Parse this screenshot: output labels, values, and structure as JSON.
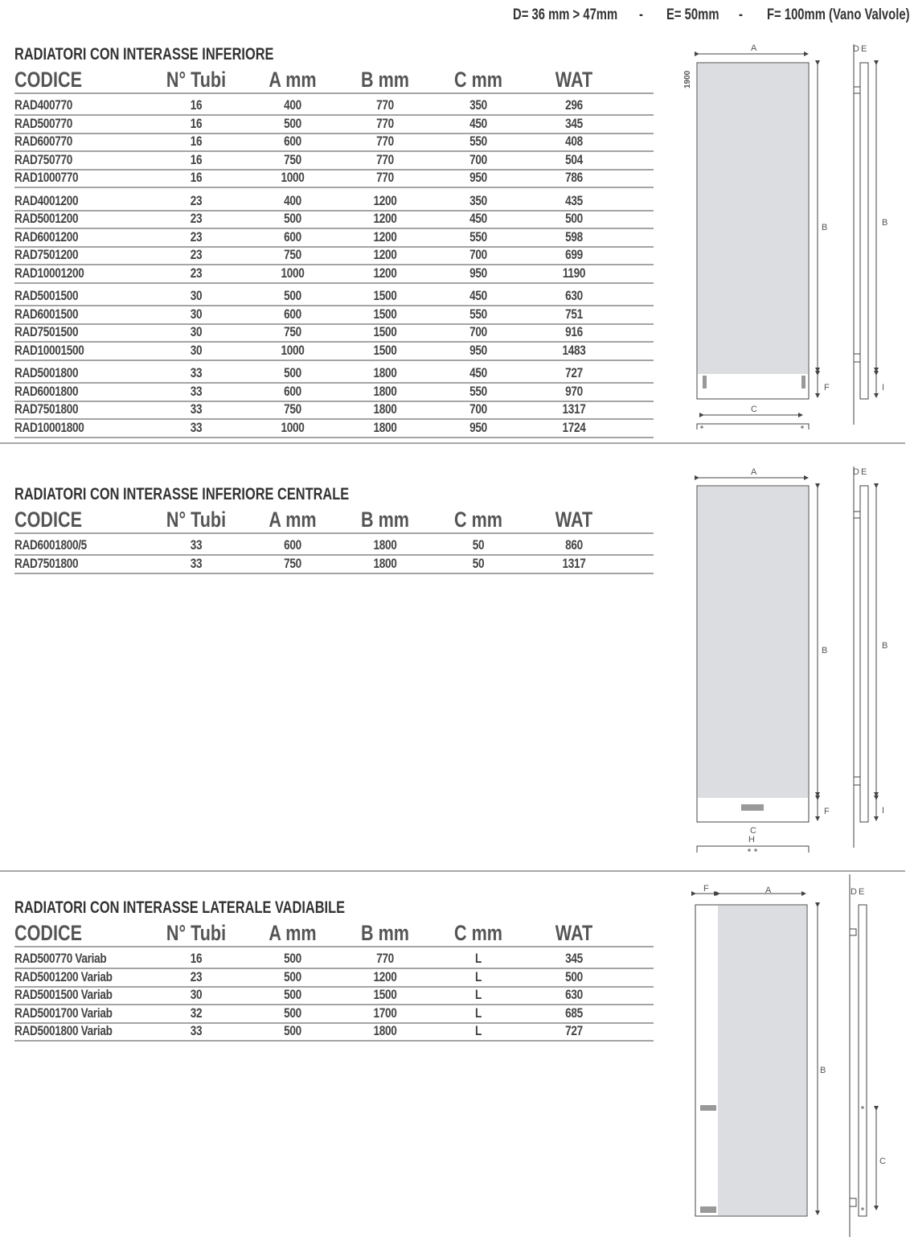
{
  "header_notes": [
    "D= 36 mm > 47mm",
    "-",
    "E= 50mm",
    "-",
    "F= 100mm (Vano Valvole)"
  ],
  "columns": [
    "CODICE",
    "N° Tubi",
    "A mm",
    "B mm",
    "C mm",
    "WAT"
  ],
  "sections": [
    {
      "title": "RADIATORI CON INTERASSE INFERIORE",
      "groups": [
        [
          [
            "RAD400770",
            "16",
            "400",
            "770",
            "350",
            "296"
          ],
          [
            "RAD500770",
            "16",
            "500",
            "770",
            "450",
            "345"
          ],
          [
            "RAD600770",
            "16",
            "600",
            "770",
            "550",
            "408"
          ],
          [
            "RAD750770",
            "16",
            "750",
            "770",
            "700",
            "504"
          ],
          [
            "RAD1000770",
            "16",
            "1000",
            "770",
            "950",
            "786"
          ]
        ],
        [
          [
            "RAD4001200",
            "23",
            "400",
            "1200",
            "350",
            "435"
          ],
          [
            "RAD5001200",
            "23",
            "500",
            "1200",
            "450",
            "500"
          ],
          [
            "RAD6001200",
            "23",
            "600",
            "1200",
            "550",
            "598"
          ],
          [
            "RAD7501200",
            "23",
            "750",
            "1200",
            "700",
            "699"
          ],
          [
            "RAD10001200",
            "23",
            "1000",
            "1200",
            "950",
            "1190"
          ]
        ],
        [
          [
            "RAD5001500",
            "30",
            "500",
            "1500",
            "450",
            "630"
          ],
          [
            "RAD6001500",
            "30",
            "600",
            "1500",
            "550",
            "751"
          ],
          [
            "RAD7501500",
            "30",
            "750",
            "1500",
            "700",
            "916"
          ],
          [
            "RAD10001500",
            "30",
            "1000",
            "1500",
            "950",
            "1483"
          ]
        ],
        [
          [
            "RAD5001800",
            "33",
            "500",
            "1800",
            "450",
            "727"
          ],
          [
            "RAD6001800",
            "33",
            "600",
            "1800",
            "550",
            "970"
          ],
          [
            "RAD7501800",
            "33",
            "750",
            "1800",
            "700",
            "1317"
          ],
          [
            "RAD10001800",
            "33",
            "1000",
            "1800",
            "950",
            "1724"
          ]
        ]
      ]
    },
    {
      "title": "RADIATORI CON INTERASSE INFERIORE CENTRALE",
      "groups": [
        [
          [
            "RAD6001800/5",
            "33",
            "600",
            "1800",
            "50",
            "860"
          ],
          [
            "RAD7501800",
            "33",
            "750",
            "1800",
            "50",
            "1317"
          ]
        ]
      ]
    },
    {
      "title": "RADIATORI CON INTERASSE LATERALE VADIABILE",
      "groups": [
        [
          [
            "RAD500770 Variab",
            "16",
            "500",
            "770",
            "L",
            "345"
          ],
          [
            "RAD5001200 Variab",
            "23",
            "500",
            "1200",
            "L",
            "500"
          ],
          [
            "RAD5001500 Variab",
            "30",
            "500",
            "1500",
            "L",
            "630"
          ],
          [
            "RAD5001700 Variab",
            "32",
            "500",
            "1700",
            "L",
            "685"
          ],
          [
            "RAD5001800 Variab",
            "33",
            "500",
            "1800",
            "L",
            "727"
          ]
        ]
      ]
    }
  ],
  "diagram_labels": {
    "a": "A",
    "b": "B",
    "c": "C",
    "d": "D",
    "e": "E",
    "f": "F",
    "i": "I",
    "h": "H",
    "height": "1900"
  },
  "colors": {
    "panel_fill": "#dcdde0",
    "text": "#4a4a4c",
    "rule": "#a4a4a6"
  }
}
